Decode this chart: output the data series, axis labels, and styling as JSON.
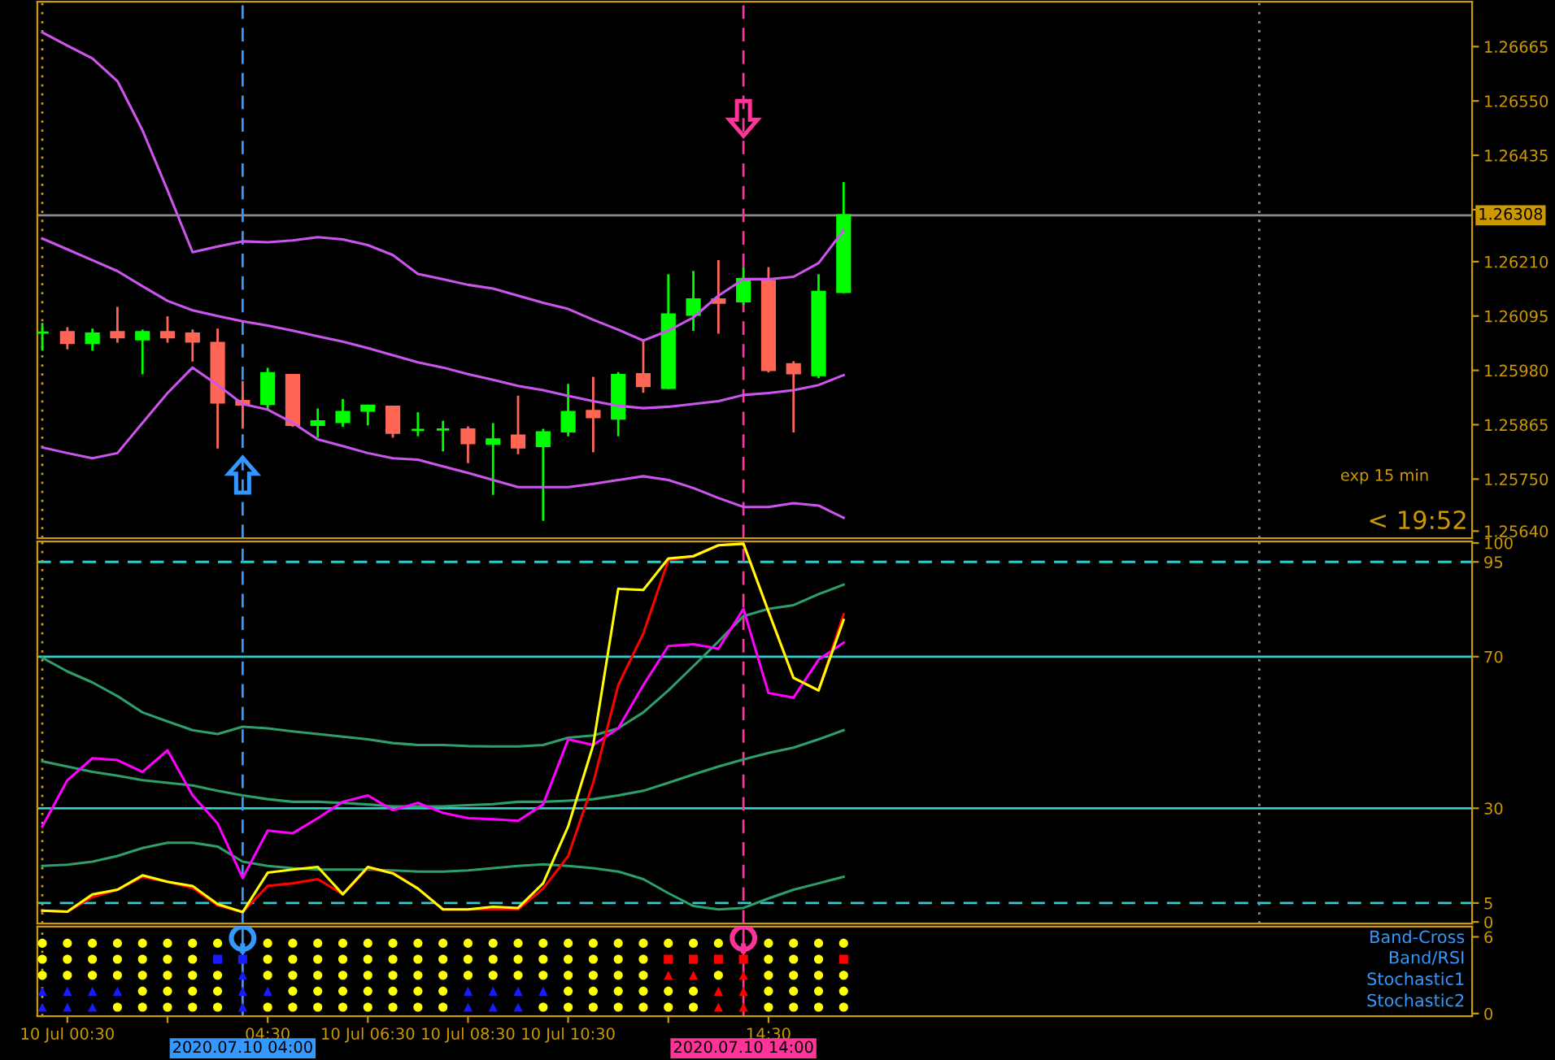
{
  "chart_data": [
    {
      "type": "candlestick",
      "x": [
        0,
        0.5,
        1,
        1.5,
        2,
        2.5,
        3,
        3.5,
        4,
        4.5,
        5,
        5.5,
        6,
        6.5,
        7,
        7.5,
        8,
        8.5,
        9,
        9.5,
        10,
        10.5,
        11,
        11.5,
        12,
        12.5,
        13,
        13.5,
        14,
        14.5,
        15,
        15.5,
        16
      ],
      "ohlc": [
        [
          1.2606,
          1.26078,
          1.26024,
          1.2606
        ],
        [
          1.26061,
          1.26069,
          1.26027,
          1.26038
        ],
        [
          1.26038,
          1.26066,
          1.26024,
          1.26058
        ],
        [
          1.26061,
          1.26112,
          1.26041,
          1.2605
        ],
        [
          1.26046,
          1.26064,
          1.25974,
          1.26061
        ],
        [
          1.26061,
          1.26092,
          1.26041,
          1.2605
        ],
        [
          1.26058,
          1.26064,
          1.26001,
          1.26041
        ],
        [
          1.26038,
          1.26066,
          1.25817,
          1.25912
        ],
        [
          1.25915,
          1.25955,
          1.25859,
          1.25908
        ],
        [
          1.25909,
          1.25983,
          1.25897,
          1.25974
        ],
        [
          1.2597,
          1.2597,
          1.25863,
          1.25865
        ],
        [
          1.25865,
          1.25897,
          1.2584,
          1.25872
        ],
        [
          1.25871,
          1.25917,
          1.25863,
          1.25892
        ],
        [
          1.25895,
          1.25905,
          1.25866,
          1.25905
        ],
        [
          1.25903,
          1.25903,
          1.2584,
          1.25848
        ],
        [
          1.25854,
          1.25889,
          1.25843,
          1.25854
        ],
        [
          1.25855,
          1.25871,
          1.25811,
          1.25855
        ],
        [
          1.25855,
          1.25859,
          1.25786,
          1.25826
        ],
        [
          1.25825,
          1.25866,
          1.25719,
          1.25834
        ],
        [
          1.25842,
          1.25924,
          1.25805,
          1.25817
        ],
        [
          1.2582,
          1.25854,
          1.25664,
          1.25849
        ],
        [
          1.25851,
          1.25949,
          1.25843,
          1.25892
        ],
        [
          1.25894,
          1.25964,
          1.25809,
          1.25881
        ],
        [
          1.25878,
          1.25974,
          1.25843,
          1.2597
        ],
        [
          1.25972,
          1.26041,
          1.25935,
          1.25947
        ],
        [
          1.25943,
          1.26181,
          1.25943,
          1.26098
        ],
        [
          1.26098,
          1.26188,
          1.26066,
          1.2613
        ],
        [
          1.2613,
          1.26211,
          1.2606,
          1.26123
        ],
        [
          1.26126,
          1.26196,
          1.26121,
          1.26173
        ],
        [
          1.26169,
          1.26196,
          1.25978,
          1.25981
        ],
        [
          1.25993,
          1.25997,
          1.25851,
          1.25974
        ],
        [
          1.2597,
          1.26181,
          1.25966,
          1.26146
        ],
        [
          1.26146,
          1.26376,
          1.26146,
          1.26308
        ]
      ],
      "colors": [
        "#00ff00",
        "#ff6655",
        "#00ff00",
        "#ff6655",
        "#00ff00",
        "#ff6655",
        "#ff6655",
        "#ff6655",
        "#ff6655",
        "#00ff00",
        "#ff6655",
        "#00ff00",
        "#00ff00",
        "#00ff00",
        "#ff6655",
        "#00ff00",
        "#00ff00",
        "#ff6655",
        "#00ff00",
        "#ff6655",
        "#00ff00",
        "#00ff00",
        "#ff6655",
        "#00ff00",
        "#ff6655",
        "#00ff00",
        "#00ff00",
        "#ff6655",
        "#00ff00",
        "#ff6655",
        "#ff6655",
        "#00ff00",
        "#00ff00"
      ],
      "series": [
        {
          "type": "line",
          "color": "#cc55ee",
          "values": [
            1.26695,
            1.26667,
            1.2664,
            1.26592,
            1.26488,
            1.26361,
            1.2623,
            1.26242,
            1.26253,
            1.26251,
            1.26255,
            1.26262,
            1.26257,
            1.26245,
            1.26224,
            1.26184,
            1.26173,
            1.26161,
            1.26153,
            1.26138,
            1.26123,
            1.2611,
            1.26087,
            1.26066,
            1.26043,
            1.26064,
            1.26092,
            1.26138,
            1.26173,
            1.26173,
            1.26178,
            1.26207,
            1.26276
          ]
        },
        {
          "type": "line",
          "color": "#cc55ee",
          "values": [
            1.26259,
            1.26236,
            1.26213,
            1.2619,
            1.26158,
            1.26127,
            1.26107,
            1.26095,
            1.26084,
            1.26075,
            1.26064,
            1.26052,
            1.26041,
            1.26027,
            1.26012,
            1.25997,
            1.25986,
            1.25972,
            1.2596,
            1.25947,
            1.25938,
            1.25926,
            1.25915,
            1.25905,
            1.259,
            1.25903,
            1.25909,
            1.25915,
            1.25928,
            1.25932,
            1.25938,
            1.25949,
            1.2597
          ]
        },
        {
          "type": "line",
          "color": "#cc55ee",
          "values": [
            1.25817,
            1.25805,
            1.25794,
            1.25805,
            1.25869,
            1.25932,
            1.25986,
            1.25949,
            1.25909,
            1.25897,
            1.25869,
            1.25834,
            1.2582,
            1.25805,
            1.25794,
            1.25791,
            1.25777,
            1.25763,
            1.25748,
            1.25733,
            1.25733,
            1.25733,
            1.2574,
            1.25748,
            1.25756,
            1.25748,
            1.25731,
            1.2571,
            1.25691,
            1.25691,
            1.25699,
            1.25694,
            1.25668
          ]
        }
      ],
      "xlim": [
        -0.1,
        28.55
      ],
      "ylim": [
        1.25625,
        1.2676
      ],
      "yticks": [
        1.26665,
        {
          "value": 1.2655,
          "label": "1.26550"
        },
        1.26435,
        {
          "value": 1.2632,
          "label": null
        },
        {
          "value": 1.2621,
          "label": "1.26210"
        },
        1.26095,
        {
          "value": 1.2598,
          "label": "1.25980"
        },
        1.25865,
        {
          "value": 1.2575,
          "label": "1.25750"
        },
        {
          "value": 1.2564,
          "label": "1.25640"
        }
      ],
      "tick_labels": "y",
      "ref_lines": [
        {
          "axis": "y",
          "value": 1.26308,
          "label": "1.26308",
          "color": "#8c8c8c",
          "line_style": "solid"
        },
        {
          "axis": "x",
          "value": 0,
          "color": "#cc9900",
          "line_style": "dotted"
        },
        {
          "axis": "x",
          "value": 24.3,
          "color": "#8c8c8c",
          "line_style": "dotted"
        },
        {
          "axis": "x",
          "value": 4,
          "color": "#3399ff",
          "line_style": "dashed"
        },
        {
          "axis": "x",
          "value": 14,
          "color": "#ff3399",
          "line_style": "dashed"
        }
      ],
      "annotations": [
        "exp 15 min",
        "< 19:52"
      ]
    },
    {
      "type": "line",
      "x": [
        0,
        0.5,
        1,
        1.5,
        2,
        2.5,
        3,
        3.5,
        4,
        4.5,
        5,
        5.5,
        6,
        6.5,
        7,
        7.5,
        8,
        8.5,
        9,
        9.5,
        10,
        10.5,
        11,
        11.5,
        12,
        12.5,
        13,
        13.5,
        14,
        14.5,
        15,
        15.5,
        16
      ],
      "series": [
        {
          "color": "#2e9e6a",
          "values": [
            69.7,
            66.1,
            63.2,
            59.6,
            55.3,
            52.9,
            50.6,
            49.6,
            51.5,
            51.1,
            50.3,
            49.6,
            48.9,
            48.2,
            47.2,
            46.7,
            46.7,
            46.4,
            46.3,
            46.3,
            46.7,
            48.6,
            49.2,
            51.1,
            55.3,
            61.1,
            67.5,
            74.0,
            80.7,
            82.6,
            83.6,
            86.5,
            89.0
          ]
        },
        {
          "color": "#2e9e6a",
          "values": [
            42.4,
            41.0,
            39.6,
            38.6,
            37.4,
            36.7,
            36.0,
            34.6,
            33.4,
            32.4,
            31.7,
            31.7,
            31.4,
            31.0,
            30.5,
            30.5,
            30.5,
            30.8,
            31.1,
            31.7,
            31.7,
            32.0,
            32.4,
            33.4,
            34.6,
            36.7,
            38.9,
            41.0,
            42.9,
            44.6,
            46.0,
            48.2,
            50.6
          ]
        },
        {
          "color": "#2e9e6a",
          "values": [
            14.8,
            15.1,
            15.9,
            17.4,
            19.5,
            20.9,
            20.9,
            19.9,
            15.9,
            14.8,
            14.2,
            13.8,
            13.8,
            13.8,
            13.6,
            13.3,
            13.3,
            13.6,
            14.2,
            14.8,
            15.2,
            14.8,
            14.2,
            13.3,
            11.3,
            7.6,
            4.2,
            3.3,
            3.7,
            6.2,
            8.5,
            10.2,
            11.9
          ]
        },
        {
          "color": "#ff00ff",
          "values": [
            25.2,
            37.4,
            43.2,
            42.7,
            39.6,
            45.3,
            33.4,
            26.0,
            11.6,
            24.1,
            23.4,
            27.4,
            31.7,
            33.4,
            29.5,
            31.4,
            28.8,
            27.4,
            27.1,
            26.7,
            31.0,
            48.2,
            46.7,
            51.1,
            62.5,
            72.8,
            73.3,
            72.1,
            82.6,
            60.4,
            59.2,
            69.2,
            73.7
          ]
        },
        {
          "color": "#ff0000",
          "values": [
            3.0,
            2.7,
            6.6,
            8.5,
            11.9,
            10.6,
            9.0,
            4.4,
            2.6,
            9.5,
            10.2,
            11.3,
            7.3,
            14.2,
            13.0,
            8.8,
            3.3,
            3.3,
            3.3,
            3.3,
            8.8,
            17.4,
            36.7,
            62.5,
            76.1,
            95.5,
            96.5,
            99.4,
            99.8,
            81.9,
            64.4,
            61.1,
            81.2
          ]
        },
        {
          "color": "#ffff00",
          "values": [
            3.0,
            2.7,
            7.3,
            8.5,
            12.3,
            10.6,
            9.5,
            4.7,
            2.6,
            13.0,
            13.8,
            14.5,
            7.3,
            14.5,
            12.8,
            8.8,
            3.3,
            3.3,
            4.0,
            3.7,
            10.2,
            25.2,
            46.7,
            87.9,
            87.6,
            95.9,
            96.5,
            99.4,
            99.8,
            81.9,
            64.4,
            61.1,
            79.7
          ]
        }
      ],
      "xlim": [
        -0.1,
        28.55
      ],
      "ylim": [
        -0.4,
        100.4
      ],
      "yticks": [
        0,
        5,
        30,
        70,
        95,
        100
      ],
      "tick_labels": "y",
      "ref_lines": [
        {
          "axis": "y",
          "value": 95,
          "color": "#33cccc",
          "line_style": "dashed"
        },
        {
          "axis": "y",
          "value": 70,
          "color": "#33cccc",
          "line_style": "solid"
        },
        {
          "axis": "y",
          "value": 30,
          "color": "#33cccc",
          "line_style": "solid"
        },
        {
          "axis": "y",
          "value": 5,
          "color": "#33cccc",
          "line_style": "dashed"
        },
        {
          "axis": "x",
          "value": 0,
          "color": "#cc9900",
          "line_style": "dotted"
        },
        {
          "axis": "x",
          "value": 24.3,
          "color": "#8c8c8c",
          "line_style": "dotted"
        },
        {
          "axis": "x",
          "value": 4,
          "color": "#3399ff",
          "line_style": "dashed"
        },
        {
          "axis": "x",
          "value": 14,
          "color": "#ff3399",
          "line_style": "dashed"
        }
      ]
    },
    {
      "type": "scatter",
      "series": [
        {
          "color": "#ffff00",
          "marker": "circle",
          "x": [
            0,
            0.5,
            1,
            1.5,
            2,
            2.5,
            3,
            3.5,
            4.5,
            5,
            5.5,
            6,
            6.5,
            7,
            7.5,
            8,
            8.5,
            9,
            9.5,
            10,
            10.5,
            11,
            11.5,
            12,
            12.5,
            13,
            13.5,
            14.5,
            15,
            15.5,
            16
          ],
          "values": [
            5.5,
            5.5,
            5.5,
            5.5,
            5.5,
            5.5,
            5.5,
            5.5,
            5.5,
            5.5,
            5.5,
            5.5,
            5.5,
            5.5,
            5.5,
            5.5,
            5.5,
            5.5,
            5.5,
            5.5,
            5.5,
            5.5,
            5.5,
            5.5,
            5.5,
            5.5,
            5.5,
            5.5,
            5.5,
            5.5,
            5.5
          ]
        },
        {
          "color": "#ffff00",
          "marker": "circle",
          "x": [
            0,
            0.5,
            1,
            1.5,
            2,
            2.5,
            3,
            4.5,
            5,
            5.5,
            6,
            6.5,
            7,
            7.5,
            8,
            8.5,
            9,
            9.5,
            10,
            10.5,
            11,
            11.5,
            12,
            14.5,
            15,
            15.5
          ],
          "values": [
            4.25,
            4.25,
            4.25,
            4.25,
            4.25,
            4.25,
            4.25,
            4.25,
            4.25,
            4.25,
            4.25,
            4.25,
            4.25,
            4.25,
            4.25,
            4.25,
            4.25,
            4.25,
            4.25,
            4.25,
            4.25,
            4.25,
            4.25,
            4.25,
            4.25,
            4.25
          ]
        },
        {
          "color": "#ffff00",
          "marker": "circle",
          "x": [
            0,
            0.5,
            1,
            1.5,
            2,
            2.5,
            3,
            3.5,
            4.5,
            5,
            5.5,
            6,
            6.5,
            7,
            7.5,
            8,
            8.5,
            9,
            9.5,
            10,
            10.5,
            11,
            11.5,
            12,
            13.5,
            14.5,
            15,
            15.5,
            16
          ],
          "values": [
            3,
            3,
            3,
            3,
            3,
            3,
            3,
            3,
            3,
            3,
            3,
            3,
            3,
            3,
            3,
            3,
            3,
            3,
            3,
            3,
            3,
            3,
            3,
            3,
            3,
            3,
            3,
            3,
            3
          ]
        },
        {
          "color": "#ffff00",
          "marker": "circle",
          "x": [
            2,
            2.5,
            3,
            3.5,
            5,
            5.5,
            6,
            6.5,
            7,
            7.5,
            8,
            10.5,
            11,
            11.5,
            12,
            12.5,
            13,
            14.5,
            15,
            15.5,
            16
          ],
          "values": [
            1.75,
            1.75,
            1.75,
            1.75,
            1.75,
            1.75,
            1.75,
            1.75,
            1.75,
            1.75,
            1.75,
            1.75,
            1.75,
            1.75,
            1.75,
            1.75,
            1.75,
            1.75,
            1.75,
            1.75,
            1.75
          ]
        },
        {
          "color": "#ffff00",
          "marker": "circle",
          "x": [
            1.5,
            2,
            2.5,
            3,
            3.5,
            4.5,
            5,
            5.5,
            6,
            6.5,
            7,
            7.5,
            8,
            10,
            10.5,
            11,
            11.5,
            12,
            12.5,
            13,
            14.5,
            15,
            15.5,
            16
          ],
          "values": [
            0.5,
            0.5,
            0.5,
            0.5,
            0.5,
            0.5,
            0.5,
            0.5,
            0.5,
            0.5,
            0.5,
            0.5,
            0.5,
            0.5,
            0.5,
            0.5,
            0.5,
            0.5,
            0.5,
            0.5,
            0.5,
            0.5,
            0.5,
            0.5
          ]
        },
        {
          "color": "#1a1aff",
          "marker": "square",
          "x": [
            3.5,
            4
          ],
          "values": [
            4.25,
            4.25
          ]
        },
        {
          "color": "#ff0000",
          "marker": "square",
          "x": [
            12.5,
            13,
            13.5,
            14,
            16
          ],
          "values": [
            4.25,
            4.25,
            4.25,
            4.25,
            4.25
          ]
        },
        {
          "color": "#1a1aff",
          "marker": "triangle",
          "x": [
            4,
            0,
            0.5,
            1,
            1.5,
            4,
            4.5,
            8.5,
            9,
            9.5,
            10,
            0,
            0.5,
            1,
            4,
            8.5,
            9,
            9.5
          ],
          "values": [
            3,
            1.75,
            1.75,
            1.75,
            1.75,
            1.75,
            1.75,
            1.75,
            1.75,
            1.75,
            1.75,
            0.5,
            0.5,
            0.5,
            0.5,
            0.5,
            0.5,
            0.5
          ]
        },
        {
          "color": "#ff0000",
          "marker": "triangle",
          "x": [
            12.5,
            13,
            14,
            13.5,
            14,
            13.5,
            14
          ],
          "values": [
            3,
            3,
            3,
            1.75,
            1.75,
            0.5,
            0.5
          ]
        }
      ],
      "xlim": [
        -0.1,
        28.55
      ],
      "ylim": [
        -0.2,
        6.8
      ],
      "yticks": [
        0,
        6
      ],
      "xticks": [
        {
          "value": 0.5,
          "label": "10 Jul 00:30"
        },
        {
          "value": 2.5,
          "label": null
        },
        {
          "value": 4.5,
          "label": "04:30"
        },
        {
          "value": 6.5,
          "label": "10 Jul 06:30"
        },
        {
          "value": 8.5,
          "label": "10 Jul 08:30"
        },
        {
          "value": 10.5,
          "label": "10 Jul 10:30"
        },
        {
          "value": 12.5,
          "label": null
        },
        {
          "value": 14.5,
          "label": "14:30"
        }
      ],
      "ref_lines": [
        {
          "axis": "x",
          "value": 0,
          "color": "#cc9900",
          "line_style": "dotted"
        },
        {
          "axis": "x",
          "value": 4,
          "color": "#3399ff",
          "line_style": "solid",
          "label": "2020.07.10 04:00"
        },
        {
          "axis": "x",
          "value": 14,
          "color": "#ff3399",
          "line_style": "solid",
          "label": "2020.07.10 14:00"
        }
      ],
      "annotations": [
        "Band-Cross",
        "Band/RSI",
        "Stochastic1",
        "Stochastic2"
      ]
    }
  ]
}
